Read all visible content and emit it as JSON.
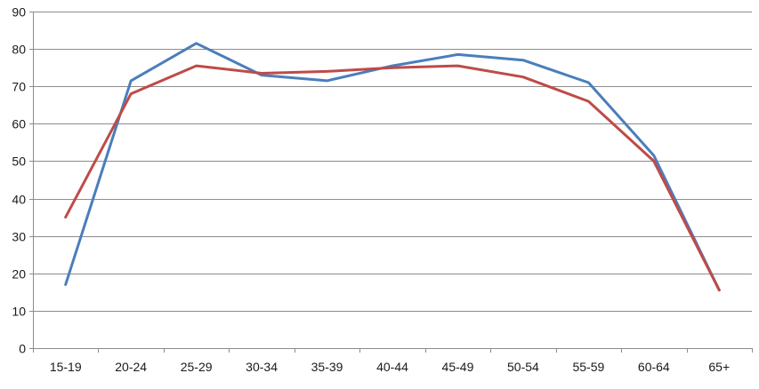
{
  "chart_data": {
    "type": "line",
    "categories": [
      "15-19",
      "20-24",
      "25-29",
      "30-34",
      "35-39",
      "40-44",
      "45-49",
      "50-54",
      "55-59",
      "60-64",
      "65+"
    ],
    "series": [
      {
        "color": "#4a7ebb",
        "values": [
          17,
          71.5,
          81.5,
          73,
          71.5,
          75.5,
          78.5,
          77,
          71,
          51.5,
          15.5
        ]
      },
      {
        "color": "#be4b48",
        "values": [
          35,
          68,
          75.5,
          73.5,
          74,
          75,
          75.5,
          72.5,
          66,
          50,
          15.5
        ]
      }
    ],
    "ylim": [
      0,
      90
    ],
    "yticks": [
      0,
      10,
      20,
      30,
      40,
      50,
      60,
      70,
      80,
      90
    ],
    "grid": true,
    "legend": "none"
  }
}
